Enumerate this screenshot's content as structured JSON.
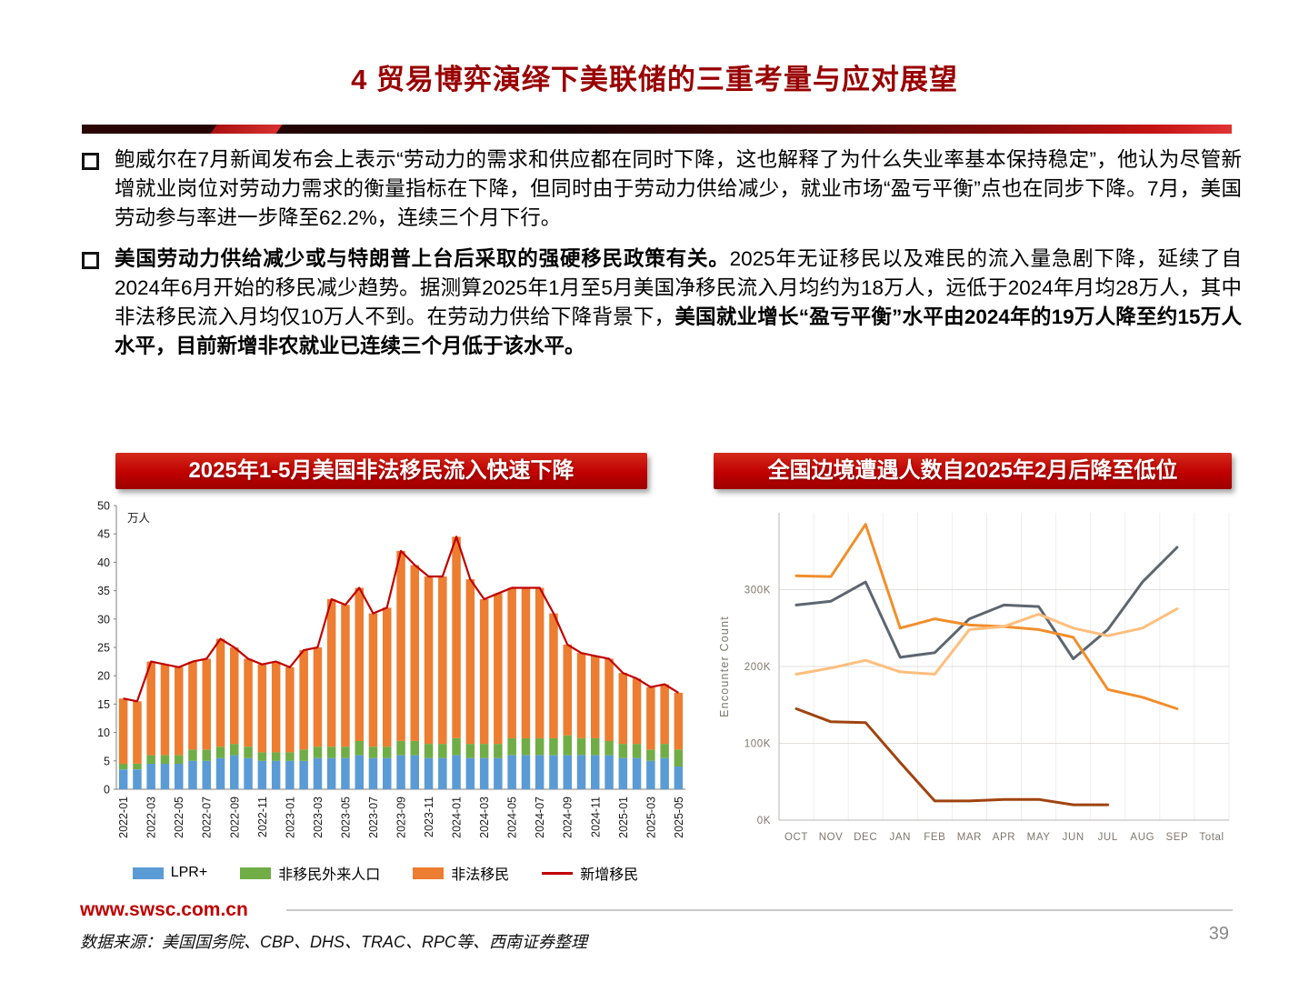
{
  "page": {
    "title": "4 贸易博弈演绎下美联储的三重考量与应对展望",
    "website": "www.swsc.com.cn",
    "source_note": "数据来源：美国国务院、CBP、DHS、TRAC、RPC等、西南证券整理",
    "page_number": "39"
  },
  "colors": {
    "accent_red": "#C00000",
    "title_red": "#990000"
  },
  "bullets": [
    {
      "segments": [
        {
          "text": "鲍威尔在7月新闻发布会上表示“劳动力的需求和供应都在同时下降，这也解释了为什么失业率基本保持稳定”，他认为尽管新增就业岗位对劳动力需求的衡量指标在下降，但同时由于劳动力供给减少，就业市场“盈亏平衡”点也在同步下降。7月，美国劳动参与率进一步降至62.2%，连续三个月下行。",
          "bold": false
        }
      ]
    },
    {
      "segments": [
        {
          "text": "美国劳动力供给减少或与特朗普上台后采取的强硬移民政策有关。",
          "bold": true
        },
        {
          "text": "2025年无证移民以及难民的流入量急剧下降，延续了自2024年6月开始的移民减少趋势。据测算2025年1月至5月美国净移民流入月均约为18万人，远低于2024年月均28万人，其中非法移民流入月均仅10万人不到。在劳动力供给下降背景下，",
          "bold": false
        },
        {
          "text": "美国就业增长“盈亏平衡”水平由2024年的19万人降至约15万人水平，目前新增非农就业已连续三个月低于该水平。",
          "bold": true
        }
      ]
    }
  ],
  "chart_data": [
    {
      "type": "bar",
      "title": "2025年1-5月美国非法移民流入快速下降",
      "unit_label": "万人",
      "ylim": [
        0,
        50
      ],
      "ytick_step": 5,
      "legend_position": "bottom",
      "categories": [
        "2022-01",
        "2022-02",
        "2022-03",
        "2022-04",
        "2022-05",
        "2022-06",
        "2022-07",
        "2022-08",
        "2022-09",
        "2022-10",
        "2022-11",
        "2022-12",
        "2023-01",
        "2023-02",
        "2023-03",
        "2023-04",
        "2023-05",
        "2023-06",
        "2023-07",
        "2023-08",
        "2023-09",
        "2023-10",
        "2023-11",
        "2023-12",
        "2024-01",
        "2024-02",
        "2024-03",
        "2024-04",
        "2024-05",
        "2024-06",
        "2024-07",
        "2024-08",
        "2024-09",
        "2024-10",
        "2024-11",
        "2024-12",
        "2025-01",
        "2025-02",
        "2025-03",
        "2025-04",
        "2025-05"
      ],
      "series": [
        {
          "name": "LPR+",
          "color": "#5B9BD5",
          "values": [
            3.5,
            3.5,
            4.5,
            4.5,
            4.5,
            5,
            5,
            5.5,
            6,
            5.5,
            5,
            5,
            5,
            5,
            5.5,
            5.5,
            5.5,
            6,
            5.5,
            5.5,
            6,
            6,
            5.5,
            5.5,
            6,
            5.5,
            5.5,
            5.5,
            6,
            6,
            6,
            6,
            6,
            6,
            6,
            6,
            5.5,
            5.5,
            5,
            5.5,
            4
          ]
        },
        {
          "name": "非移民外来人口",
          "color": "#70AD47",
          "values": [
            1,
            1,
            1.5,
            1.5,
            1.5,
            2,
            2,
            2,
            2,
            2,
            1.5,
            1.5,
            1.5,
            2,
            2,
            2,
            2,
            2.5,
            2,
            2,
            2.5,
            2.5,
            2.5,
            2.5,
            3,
            2.5,
            2.5,
            2.5,
            3,
            3,
            3,
            3,
            3.5,
            3,
            3,
            2.5,
            2.5,
            2.5,
            2,
            2.5,
            3
          ]
        },
        {
          "name": "非法移民",
          "color": "#ED7D31",
          "values": [
            11.5,
            11,
            16.5,
            16,
            15.5,
            15.5,
            16,
            19,
            17,
            15.5,
            15.5,
            16,
            15,
            17.5,
            17.5,
            26,
            25,
            27,
            23.5,
            24.5,
            33.5,
            31,
            29.5,
            29.5,
            35.5,
            29,
            25.5,
            26.5,
            26.5,
            26.5,
            26.5,
            22,
            16,
            15,
            14.5,
            14.5,
            12.5,
            11.5,
            11,
            10.5,
            10
          ]
        }
      ],
      "line_series": {
        "name": "新增移民",
        "color": "#C00000",
        "values": [
          16,
          15.5,
          22.5,
          22,
          21.5,
          22.5,
          23,
          26.5,
          25,
          23,
          22,
          22.5,
          21.5,
          24.5,
          25,
          33.5,
          32.5,
          35.5,
          31,
          32,
          42,
          39.5,
          37.5,
          37.5,
          44.5,
          37,
          33.5,
          34.5,
          35.5,
          35.5,
          35.5,
          31,
          25.5,
          24,
          23.5,
          23,
          20.5,
          19.5,
          18,
          18.5,
          17
        ]
      }
    },
    {
      "type": "line",
      "title": "全国边境遭遇人数自2025年2月后降至低位",
      "ylabel": "Encounter Count",
      "values_unit": "thousands",
      "ylim_k": [
        0,
        400
      ],
      "ytick_labels": [
        "0K",
        "100K",
        "200K",
        "300K"
      ],
      "categories": [
        "OCT",
        "NOV",
        "DEC",
        "JAN",
        "FEB",
        "MAR",
        "APR",
        "MAY",
        "JUN",
        "JUL",
        "AUG",
        "SEP"
      ],
      "x_extra_label": "Total",
      "grid": true,
      "legend_position": "none",
      "series": [
        {
          "name": "slate-gray-line",
          "color": "#5C6670",
          "values": [
            280,
            285,
            310,
            212,
            218,
            262,
            280,
            278,
            210,
            248,
            310,
            355
          ]
        },
        {
          "name": "orange-line",
          "color": "#F28E2B",
          "values": [
            318,
            317,
            385,
            250,
            262,
            254,
            252,
            248,
            238,
            170,
            160,
            145
          ]
        },
        {
          "name": "light-orange-line",
          "color": "#FFBE7D",
          "values": [
            190,
            198,
            208,
            193,
            190,
            248,
            252,
            268,
            250,
            240,
            250,
            275
          ]
        },
        {
          "name": "dark-red-line",
          "color": "#A0440F",
          "values": [
            145,
            128,
            127,
            75,
            25,
            25,
            27,
            27,
            20,
            20,
            null,
            null
          ]
        }
      ]
    }
  ]
}
